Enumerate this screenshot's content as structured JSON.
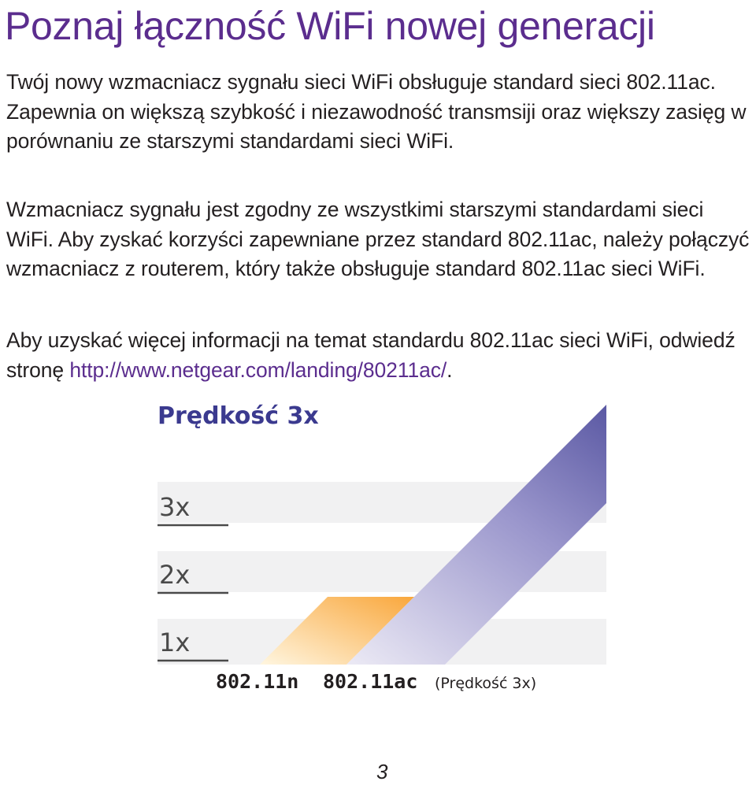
{
  "title": "Poznaj łączność WiFi nowej generacji",
  "paragraph1": "Twój nowy wzmacniacz sygnału sieci WiFi obsługuje standard sieci 802.11ac. Zapewnia on większą szybkość i niezawodność transmsiji oraz większy zasięg w porównaniu ze starszymi standardami sieci WiFi.",
  "paragraph2": "Wzmacniacz sygnału jest zgodny ze wszystkimi starszymi standardami sieci WiFi. Aby zyskać korzyści zapewniane przez standard 802.11ac, należy połączyć wzmacniacz z routerem, który także obsługuje standard 802.11ac sieci WiFi.",
  "paragraph3_text": "Aby uzyskać więcej informacji na temat standardu 802.11ac sieci WiFi, odwiedź stronę ",
  "paragraph3_link": "http://www.netgear.com/landing/80211ac/",
  "paragraph3_end": ".",
  "page_number": "3",
  "chart_data": {
    "type": "bar",
    "title": "Prędkość 3x",
    "categories": [
      "802.11n",
      "802.11ac"
    ],
    "values": [
      1,
      3
    ],
    "tick_labels": [
      "3x",
      "2x",
      "1x"
    ],
    "annotation": "(Prędkość 3x)",
    "ylim": [
      0,
      3
    ],
    "colors": {
      "802.11n": "#f9a73c",
      "802.11ac": "#3b3a8f"
    }
  }
}
